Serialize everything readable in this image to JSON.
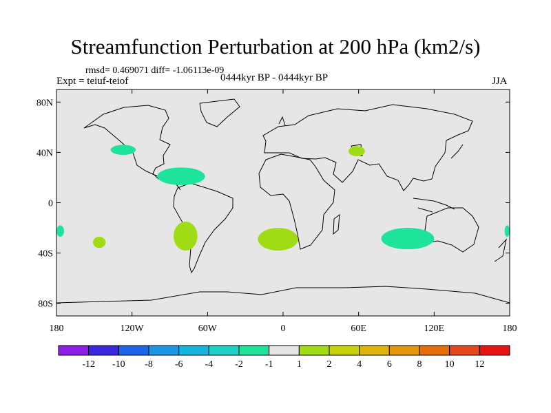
{
  "title": "Streamfunction Perturbation at 200 hPa (km2/s)",
  "stats_line": "rmsd= 0.469071 diff= -1.06113e-09",
  "experiment": "Expt = teiuf-teiof",
  "period": "0444kyr BP - 0444kyr BP",
  "season": "JJA",
  "colors": {
    "land_sea_background": "#e6e6e6",
    "coastline": "#000000",
    "anomaly_neg": "#1ee39b",
    "anomaly_pos": "#a0dc14"
  },
  "map": {
    "projection": "cylindrical-equidistant",
    "lon_range": [
      -180,
      180
    ],
    "lat_range": [
      -90,
      90
    ],
    "lat_ticks": [
      {
        "value": 80,
        "label": "80N"
      },
      {
        "value": 40,
        "label": "40N"
      },
      {
        "value": 0,
        "label": "0"
      },
      {
        "value": -40,
        "label": "40S"
      },
      {
        "value": -80,
        "label": "80S"
      }
    ],
    "lon_ticks": [
      {
        "value": -180,
        "label": "180"
      },
      {
        "value": -120,
        "label": "120W"
      },
      {
        "value": -60,
        "label": "60W"
      },
      {
        "value": 0,
        "label": "0"
      },
      {
        "value": 60,
        "label": "60E"
      },
      {
        "value": 120,
        "label": "120E"
      },
      {
        "value": 180,
        "label": "180"
      }
    ]
  },
  "chart_data": {
    "type": "heatmap",
    "title": "Streamfunction Perturbation at 200 hPa (km2/s)",
    "variable": "Streamfunction Perturbation",
    "level": "200 hPa",
    "units": "km2/s",
    "colorbar": {
      "colors": [
        "#8c1ee6",
        "#3c28dc",
        "#1e64e6",
        "#1e96e6",
        "#14b4dc",
        "#1ed2c8",
        "#1ee39b",
        "#e6e6e6",
        "#a0dc14",
        "#c8d20a",
        "#dcb40a",
        "#e6960a",
        "#e66e0a",
        "#e6461e",
        "#e61414"
      ],
      "labels": [
        "-12",
        "-10",
        "-8",
        "-6",
        "-4",
        "-2",
        "-1",
        "1",
        "2",
        "4",
        "6",
        "8",
        "10",
        "12"
      ]
    },
    "anomalies": [
      {
        "name": "north-pacific-east",
        "sign": "negative",
        "lon": [
          -137,
          -117
        ],
        "lat": [
          38,
          46
        ]
      },
      {
        "name": "caribbean",
        "sign": "negative",
        "lon": [
          -100,
          -62
        ],
        "lat": [
          14,
          28
        ]
      },
      {
        "name": "south-pacific-west",
        "sign": "negative",
        "lon": [
          -180,
          -174
        ],
        "lat": [
          -27,
          -18
        ]
      },
      {
        "name": "south-pacific-central",
        "sign": "positive",
        "lon": [
          -151,
          -141
        ],
        "lat": [
          -36,
          -27
        ]
      },
      {
        "name": "south-america-west",
        "sign": "positive",
        "lon": [
          -87,
          -68
        ],
        "lat": [
          -38,
          -15
        ]
      },
      {
        "name": "south-atlantic",
        "sign": "positive",
        "lon": [
          -20,
          12
        ],
        "lat": [
          -38,
          -20
        ]
      },
      {
        "name": "caspian",
        "sign": "positive",
        "lon": [
          52,
          65
        ],
        "lat": [
          37,
          45
        ]
      },
      {
        "name": "south-indian-ocean",
        "sign": "negative",
        "lon": [
          78,
          120
        ],
        "lat": [
          -37,
          -20
        ]
      },
      {
        "name": "australia-east-edge",
        "sign": "negative",
        "lon": [
          176,
          180
        ],
        "lat": [
          -27,
          -18
        ]
      }
    ]
  }
}
